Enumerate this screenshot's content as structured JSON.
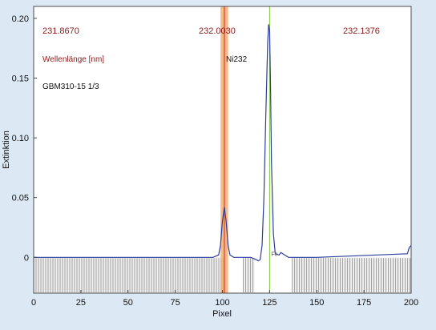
{
  "chart_data": {
    "type": "line",
    "title": "",
    "xlabel": "Pixel",
    "ylabel": "Extinktion",
    "xlim": [
      0,
      200
    ],
    "ylim": [
      -0.03,
      0.21
    ],
    "x_ticks": [
      0,
      25,
      50,
      75,
      100,
      125,
      150,
      175,
      200
    ],
    "y_ticks": [
      0,
      0.05,
      0.1,
      0.15,
      0.2
    ],
    "y_tick_labels": [
      "0",
      "0.05",
      "0.10",
      "0.15",
      "0.20"
    ],
    "wavelength_labels": [
      "231.8670",
      "232.0030",
      "232.1376"
    ],
    "wavelength_unit_label": "Wellenlänge [nm]",
    "sample_label": "GBM310-15 1/3",
    "line_label": "Ni232",
    "marker_label": "Fe",
    "highlight_band": {
      "x_start": 99,
      "x_end": 103,
      "center": 101
    },
    "reference_line_x": 125,
    "hatched_regions": [
      [
        0,
        101
      ],
      [
        111,
        117
      ],
      [
        137,
        200
      ]
    ],
    "series": [
      {
        "x": [
          0,
          95,
          98,
          99,
          100,
          101,
          102,
          103,
          104,
          106,
          110,
          115,
          118,
          119,
          120,
          121,
          122,
          123,
          124,
          124.5,
          125,
          125.5,
          126,
          127,
          128,
          130,
          131,
          135,
          150,
          198,
          199,
          200
        ],
        "y": [
          0,
          0,
          0.002,
          0.01,
          0.03,
          0.042,
          0.03,
          0.01,
          0.002,
          0,
          0,
          0,
          -0.002,
          -0.003,
          -0.002,
          0.01,
          0.05,
          0.12,
          0.18,
          0.195,
          0.19,
          0.14,
          0.08,
          0.02,
          0.003,
          0.002,
          0.004,
          0,
          0,
          0.003,
          0.008,
          0.01
        ]
      }
    ],
    "colors": {
      "background": "#dce9f5",
      "plot_area": "#ffffff",
      "trace": "#2c3e99",
      "highlight_band": "#f6a96b",
      "highlight_core": "#e2553a",
      "reference_line": "#7fc23b",
      "hatch": "#8c8c8c",
      "wavelength_text": "#8b1a1a",
      "label_text": "#111111"
    }
  }
}
